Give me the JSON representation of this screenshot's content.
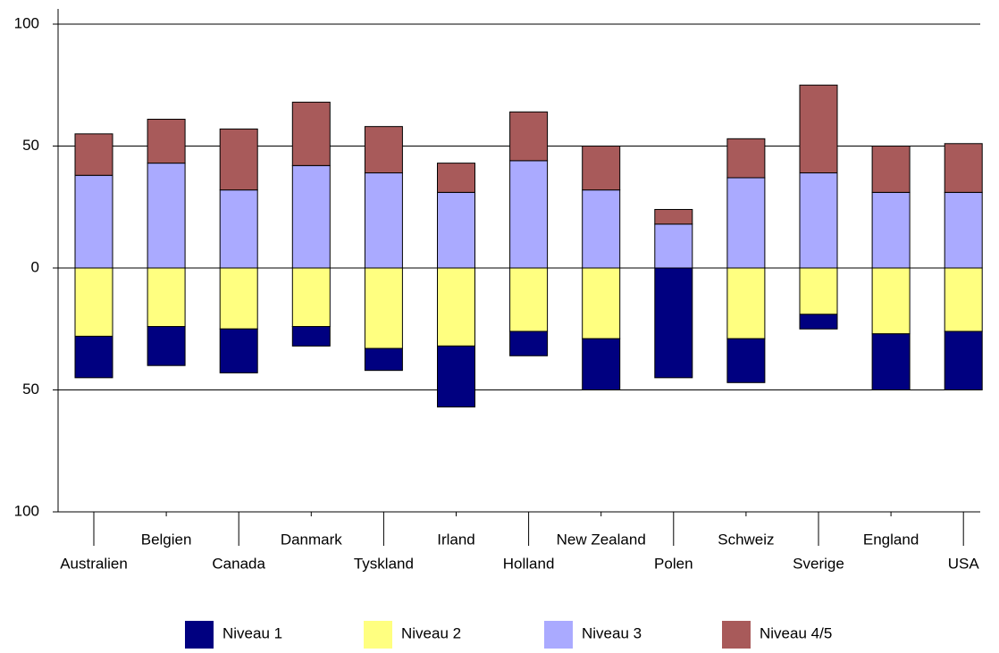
{
  "chart_data": {
    "type": "diverging-stacked-bar",
    "categories": [
      "Australien",
      "Belgien",
      "Canada",
      "Danmark",
      "Tyskland",
      "Irland",
      "Holland",
      "New Zealand",
      "Polen",
      "Schweiz",
      "Sverige",
      "England",
      "USA"
    ],
    "series": [
      {
        "name": "Niveau 1",
        "color": "#000080",
        "values": [
          -17,
          -16,
          -18,
          -8,
          -9,
          -25,
          -10,
          -21,
          -45,
          -18,
          -6,
          -23,
          -24
        ]
      },
      {
        "name": "Niveau 2",
        "color": "#ffff80",
        "values": [
          -28,
          -24,
          -25,
          -24,
          -33,
          -32,
          -26,
          -29,
          0,
          -29,
          -19,
          -27,
          -26
        ]
      },
      {
        "name": "Niveau 3",
        "color": "#aaaaff",
        "values": [
          38,
          43,
          32,
          42,
          39,
          31,
          44,
          32,
          18,
          37,
          39,
          31,
          31
        ]
      },
      {
        "name": "Niveau 4/5",
        "color": "#a85a5a",
        "values": [
          17,
          18,
          25,
          26,
          19,
          12,
          20,
          18,
          6,
          16,
          36,
          19,
          20
        ]
      }
    ],
    "ylim": [
      -100,
      100
    ],
    "yticks": [
      {
        "value": -100,
        "label": "100"
      },
      {
        "value": -50,
        "label": "50"
      },
      0,
      50,
      100
    ],
    "grid": true
  }
}
